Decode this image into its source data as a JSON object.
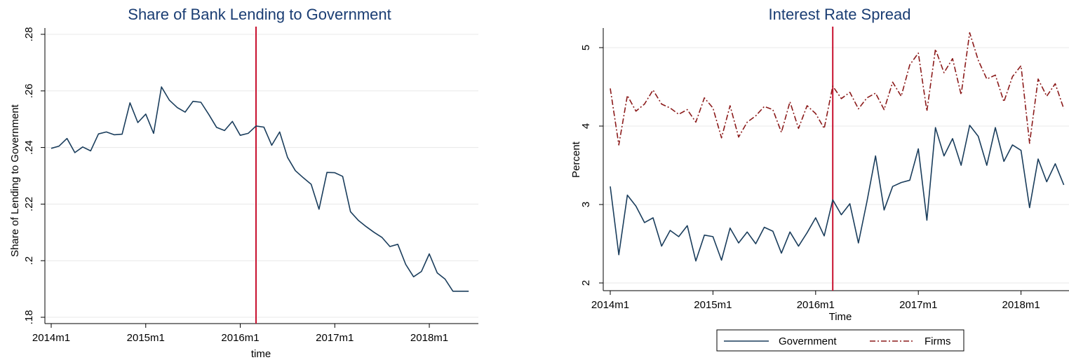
{
  "chart_data": [
    {
      "type": "line",
      "title": "Share of Bank Lending to Government",
      "xlabel": "time",
      "ylabel": "Share of Lending to Government",
      "x": [
        "2014m1",
        "2014m2",
        "2014m3",
        "2014m4",
        "2014m5",
        "2014m6",
        "2014m7",
        "2014m8",
        "2014m9",
        "2014m10",
        "2014m11",
        "2014m12",
        "2015m1",
        "2015m2",
        "2015m3",
        "2015m4",
        "2015m5",
        "2015m6",
        "2015m7",
        "2015m8",
        "2015m9",
        "2015m10",
        "2015m11",
        "2015m12",
        "2016m1",
        "2016m2",
        "2016m3",
        "2016m4",
        "2016m5",
        "2016m6",
        "2016m7",
        "2016m8",
        "2016m9",
        "2016m10",
        "2016m11",
        "2016m12",
        "2017m1",
        "2017m2",
        "2017m3",
        "2017m4",
        "2017m5",
        "2017m6",
        "2017m7",
        "2017m8",
        "2017m9",
        "2017m10",
        "2017m11",
        "2017m12",
        "2018m1",
        "2018m2",
        "2018m3",
        "2018m4",
        "2018m5",
        "2018m6"
      ],
      "xticks": [
        "2014m1",
        "2015m1",
        "2016m1",
        "2017m1",
        "2018m1"
      ],
      "yticks": [
        ".18",
        ".2",
        ".22",
        ".24",
        ".26",
        ".28"
      ],
      "ylim": [
        0.18,
        0.28
      ],
      "grid": true,
      "reference_line_x": "2016m3",
      "series": [
        {
          "color": "#1a3d5c",
          "values": [
            0.2397,
            0.2405,
            0.2432,
            0.2382,
            0.2402,
            0.2388,
            0.2448,
            0.2455,
            0.2445,
            0.2447,
            0.2558,
            0.2488,
            0.2518,
            0.245,
            0.2614,
            0.2567,
            0.2541,
            0.2525,
            0.2563,
            0.256,
            0.2517,
            0.2471,
            0.246,
            0.2492,
            0.2443,
            0.245,
            0.2476,
            0.2472,
            0.2408,
            0.2455,
            0.2365,
            0.2318,
            0.2293,
            0.227,
            0.2182,
            0.2312,
            0.2311,
            0.2298,
            0.2173,
            0.2142,
            0.212,
            0.21,
            0.2082,
            0.205,
            0.2058,
            0.1987,
            0.1943,
            0.1962,
            0.2024,
            0.1957,
            0.1935,
            0.1892,
            0.1892,
            0.1892
          ]
        }
      ]
    },
    {
      "type": "line",
      "title": "Interest Rate Spread",
      "xlabel": "Time",
      "ylabel": "Percent",
      "x": [
        "2014m1",
        "2014m2",
        "2014m3",
        "2014m4",
        "2014m5",
        "2014m6",
        "2014m7",
        "2014m8",
        "2014m9",
        "2014m10",
        "2014m11",
        "2014m12",
        "2015m1",
        "2015m2",
        "2015m3",
        "2015m4",
        "2015m5",
        "2015m6",
        "2015m7",
        "2015m8",
        "2015m9",
        "2015m10",
        "2015m11",
        "2015m12",
        "2016m1",
        "2016m2",
        "2016m3",
        "2016m4",
        "2016m5",
        "2016m6",
        "2016m7",
        "2016m8",
        "2016m9",
        "2016m10",
        "2016m11",
        "2016m12",
        "2017m1",
        "2017m2",
        "2017m3",
        "2017m4",
        "2017m5",
        "2017m6",
        "2017m7",
        "2017m8",
        "2017m9",
        "2017m10",
        "2017m11",
        "2017m12",
        "2018m1",
        "2018m2",
        "2018m3",
        "2018m4",
        "2018m5",
        "2018m6"
      ],
      "xticks": [
        "2014m1",
        "2015m1",
        "2016m1",
        "2017m1",
        "2018m1"
      ],
      "yticks": [
        "2",
        "3",
        "4",
        "5"
      ],
      "ylim": [
        1.9,
        5.25
      ],
      "grid": true,
      "reference_line_x": "2016m3",
      "legend": "bottom",
      "series": [
        {
          "name": "Government",
          "color": "#1a3d5c",
          "dash": "",
          "values": [
            3.23,
            2.36,
            3.12,
            2.98,
            2.77,
            2.83,
            2.47,
            2.67,
            2.59,
            2.73,
            2.28,
            2.61,
            2.59,
            2.29,
            2.7,
            2.51,
            2.65,
            2.5,
            2.71,
            2.66,
            2.38,
            2.65,
            2.47,
            2.64,
            2.83,
            2.6,
            3.06,
            2.87,
            3.01,
            2.51,
            3.04,
            3.62,
            2.93,
            3.23,
            3.28,
            3.31,
            3.71,
            2.8,
            3.98,
            3.62,
            3.84,
            3.5,
            4.01,
            3.87,
            3.5,
            3.98,
            3.55,
            3.76,
            3.69,
            2.96,
            3.58,
            3.29,
            3.52,
            3.25
          ]
        },
        {
          "name": "Firms",
          "color": "#8b1a1a",
          "dash": "8,3,2,3",
          "values": [
            4.48,
            3.76,
            4.39,
            4.19,
            4.28,
            4.46,
            4.28,
            4.23,
            4.15,
            4.21,
            4.05,
            4.36,
            4.23,
            3.85,
            4.26,
            3.86,
            4.05,
            4.13,
            4.25,
            4.21,
            3.92,
            4.31,
            3.97,
            4.26,
            4.16,
            3.97,
            4.51,
            4.35,
            4.43,
            4.22,
            4.36,
            4.42,
            4.21,
            4.56,
            4.38,
            4.78,
            4.93,
            4.19,
            4.98,
            4.68,
            4.86,
            4.4,
            5.19,
            4.84,
            4.6,
            4.65,
            4.31,
            4.63,
            4.77,
            3.78,
            4.6,
            4.38,
            4.54,
            4.22
          ]
        }
      ]
    }
  ]
}
